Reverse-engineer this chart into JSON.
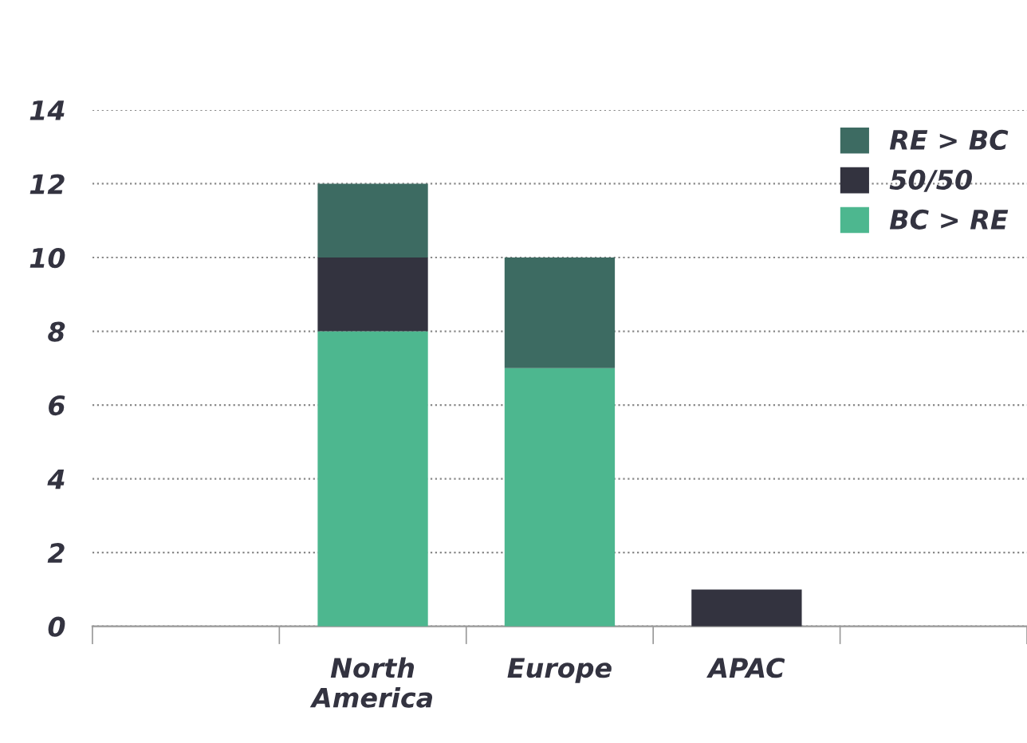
{
  "chart_data": {
    "type": "bar",
    "stacked": true,
    "categories": [
      null,
      "North\nAmerica",
      "Europe",
      "APAC",
      null
    ],
    "series": [
      {
        "name": "BC > RE",
        "color": "#4db78f",
        "values": [
          0,
          8,
          7,
          0,
          0
        ]
      },
      {
        "name": "50/50",
        "color": "#33333f",
        "values": [
          0,
          2,
          0,
          1,
          0
        ]
      },
      {
        "name": "RE > BC",
        "color": "#3d6b62",
        "values": [
          0,
          2,
          3,
          0,
          0
        ]
      }
    ],
    "ylim": [
      0,
      14
    ],
    "yticks": [
      0,
      2,
      4,
      6,
      8,
      10,
      12,
      14
    ],
    "grid": "y",
    "legend": "top right"
  }
}
